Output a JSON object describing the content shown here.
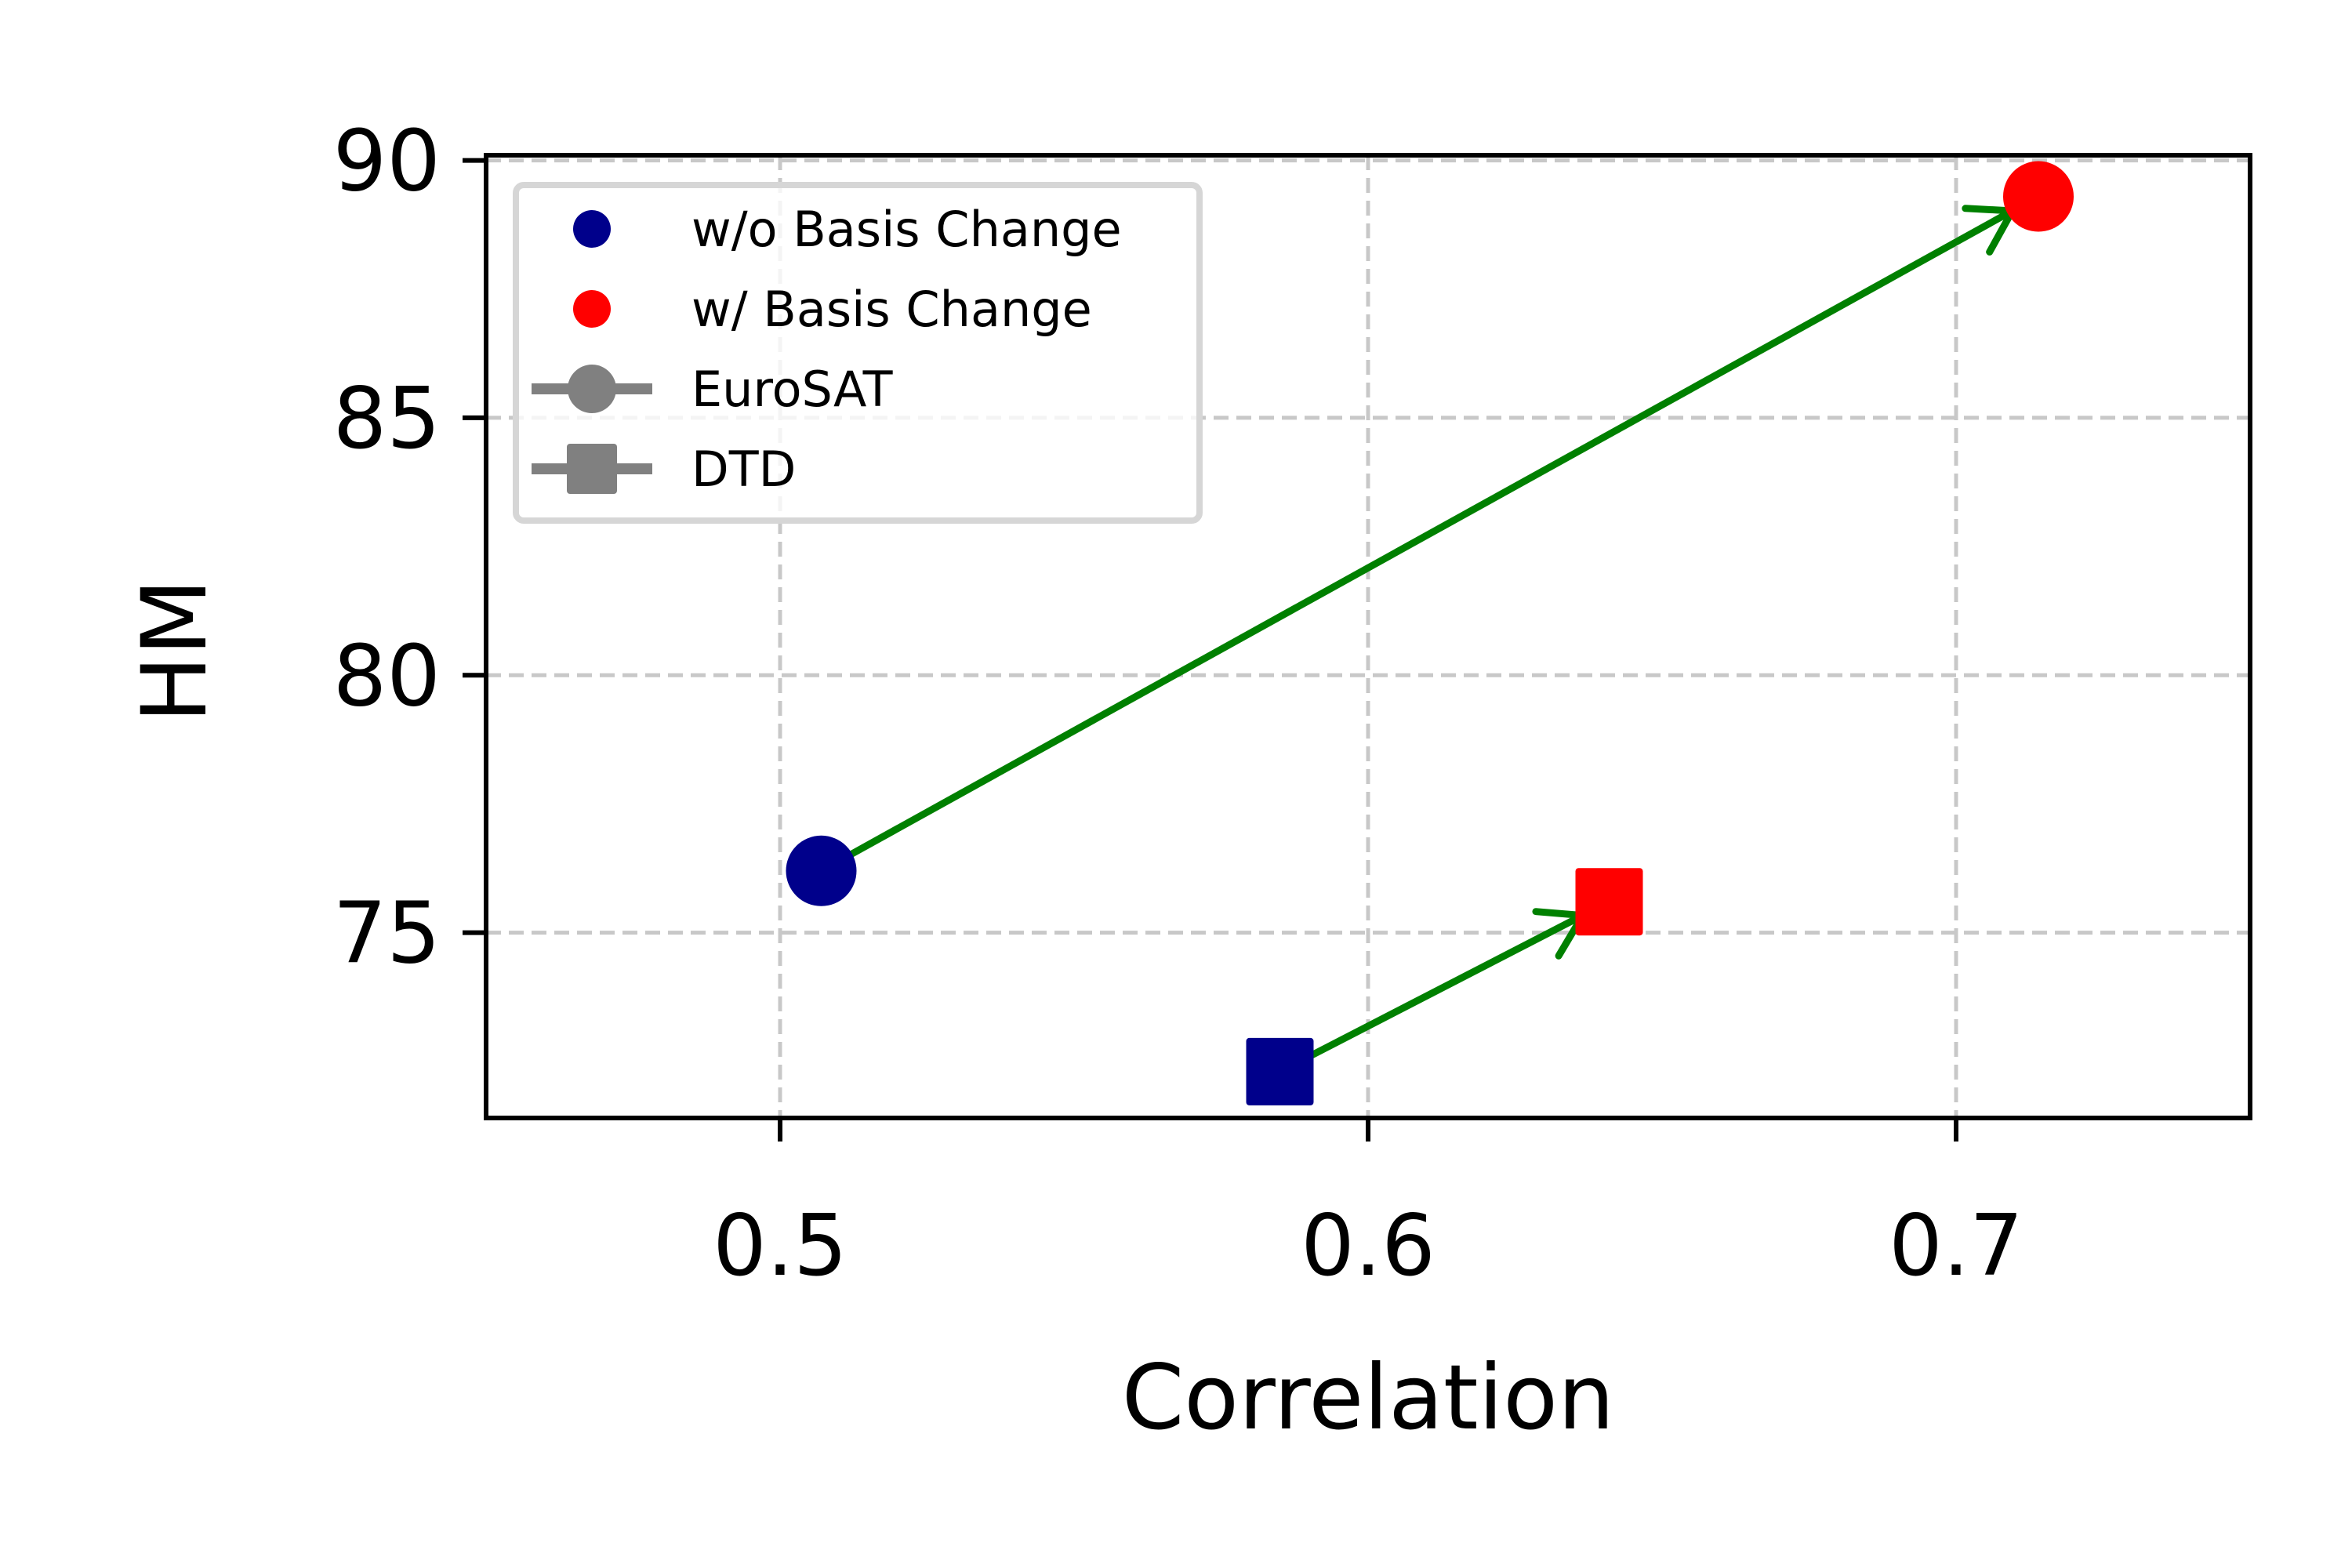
{
  "chart_data": {
    "type": "scatter",
    "title": "",
    "xlabel": "Correlation",
    "ylabel": "HM",
    "xlim": [
      0.45,
      0.75
    ],
    "ylim": [
      71.4,
      90.1
    ],
    "xticks": [
      0.5,
      0.6,
      0.7
    ],
    "xtick_labels": [
      "0.5",
      "0.6",
      "0.7"
    ],
    "yticks": [
      75,
      80,
      85,
      90
    ],
    "ytick_labels": [
      "75",
      "80",
      "85",
      "90"
    ],
    "grid": true,
    "legend_position": "upper-left",
    "colors": {
      "without": "#00008B",
      "with": "#FF0000",
      "arrow": "#008000",
      "legend_marker": "#808080",
      "grid": "#c8c8c8"
    },
    "series": [
      {
        "name": "w/o Basis Change",
        "color_key": "without",
        "points": [
          {
            "dataset": "EuroSAT",
            "x": 0.507,
            "y": 76.2
          },
          {
            "dataset": "DTD",
            "x": 0.585,
            "y": 72.3
          }
        ]
      },
      {
        "name": "w/ Basis Change",
        "color_key": "with",
        "points": [
          {
            "dataset": "EuroSAT",
            "x": 0.714,
            "y": 89.3
          },
          {
            "dataset": "DTD",
            "x": 0.641,
            "y": 75.6
          }
        ]
      }
    ],
    "markers": [
      {
        "dataset": "EuroSAT",
        "shape": "circle"
      },
      {
        "dataset": "DTD",
        "shape": "square"
      }
    ],
    "arrows": [
      {
        "dataset": "EuroSAT",
        "from": [
          0.507,
          76.2
        ],
        "to": [
          0.714,
          89.3
        ]
      },
      {
        "dataset": "DTD",
        "from": [
          0.585,
          72.3
        ],
        "to": [
          0.641,
          75.6
        ]
      }
    ],
    "legend": [
      {
        "label": "w/o Basis Change",
        "kind": "color",
        "color_key": "without"
      },
      {
        "label": "w/ Basis Change",
        "kind": "color",
        "color_key": "with"
      },
      {
        "label": "EuroSAT",
        "kind": "shape",
        "shape": "circle"
      },
      {
        "label": "DTD",
        "kind": "shape",
        "shape": "square"
      }
    ]
  }
}
